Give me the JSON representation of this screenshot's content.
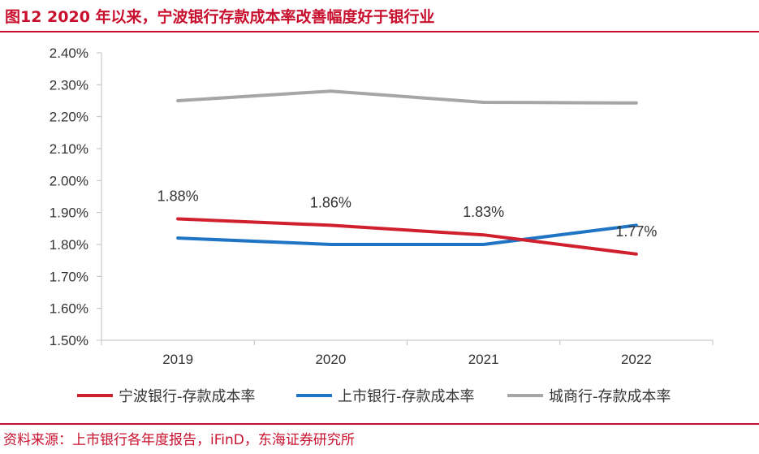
{
  "title": "图12  2020 年以来，宁波银行存款成本率改善幅度好于银行业",
  "source": "资料来源：上市银行各年度报告，iFinD，东海证券研究所",
  "chart_data": {
    "type": "line",
    "categories": [
      "2019",
      "2020",
      "2021",
      "2022"
    ],
    "ylim": [
      1.5,
      2.4
    ],
    "yticks": [
      "1.50%",
      "1.60%",
      "1.70%",
      "1.80%",
      "1.90%",
      "2.00%",
      "2.10%",
      "2.20%",
      "2.30%",
      "2.40%"
    ],
    "grid": false,
    "legend_position": "bottom",
    "series": [
      {
        "name": "宁波银行-存款成本率",
        "color": "#d0202e",
        "values": [
          1.88,
          1.86,
          1.83,
          1.77
        ],
        "labels": [
          "1.88%",
          "1.86%",
          "1.83%",
          "1.77%"
        ]
      },
      {
        "name": "上市银行-存款成本率",
        "color": "#1f75c4",
        "values": [
          1.82,
          1.8,
          1.8,
          1.86
        ]
      },
      {
        "name": "城商行-存款成本率",
        "color": "#a6a6a6",
        "values": [
          2.25,
          2.28,
          2.245,
          2.243
        ]
      }
    ]
  }
}
